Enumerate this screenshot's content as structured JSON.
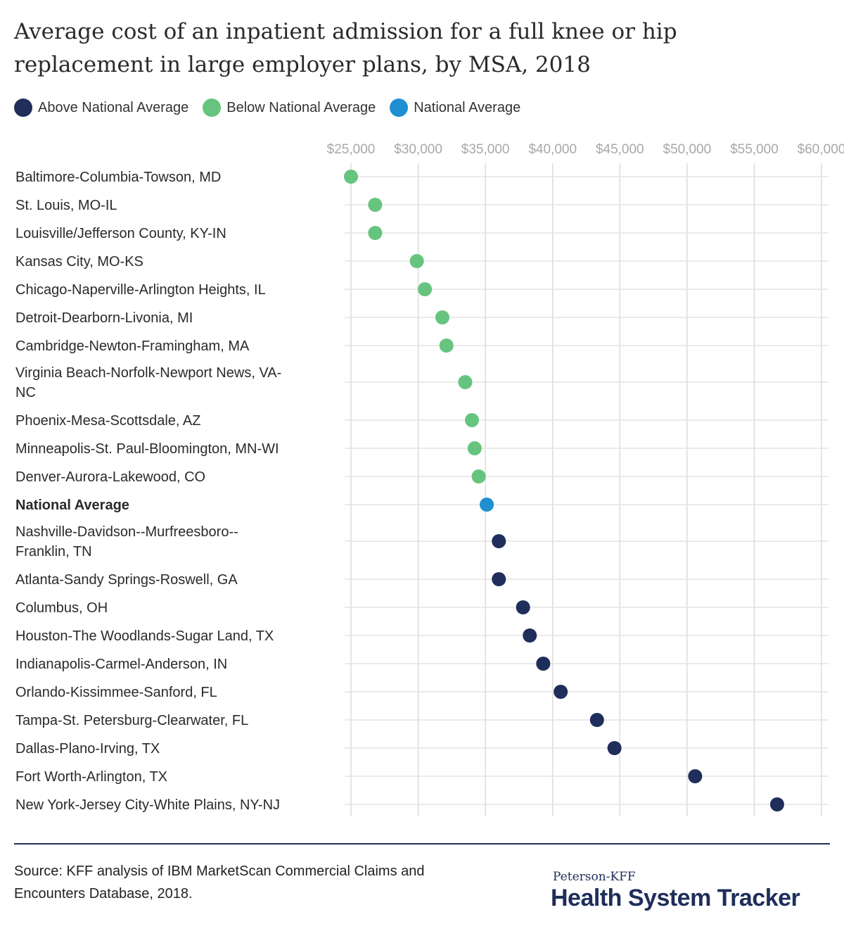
{
  "title": "Average cost of an inpatient admission for a full knee or hip replacement in large employer plans, by MSA, 2018",
  "legend": [
    {
      "label": "Above National Average",
      "color": "#1f2e5a"
    },
    {
      "label": "Below National Average",
      "color": "#66c47e"
    },
    {
      "label": "National Average",
      "color": "#1f8fd1"
    }
  ],
  "chart_data": {
    "type": "scatter",
    "title": "Average cost of an inpatient admission for a full knee or hip replacement in large employer plans, by MSA, 2018",
    "xlim": [
      25000,
      60000
    ],
    "x_ticks": [
      {
        "value": 25000,
        "label": "$25,000"
      },
      {
        "value": 30000,
        "label": "$30,000"
      },
      {
        "value": 35000,
        "label": "$35,000"
      },
      {
        "value": 40000,
        "label": "$40,000"
      },
      {
        "value": 45000,
        "label": "$45,000"
      },
      {
        "value": 50000,
        "label": "$50,000"
      },
      {
        "value": 55000,
        "label": "$55,000"
      },
      {
        "value": 60000,
        "label": "$60,000"
      }
    ],
    "grid": true,
    "legend_position": "top-left",
    "categories": [
      "Baltimore-Columbia-Towson, MD",
      "St. Louis, MO-IL",
      "Louisville/Jefferson County, KY-IN",
      "Kansas City, MO-KS",
      "Chicago-Naperville-Arlington Heights, IL",
      "Detroit-Dearborn-Livonia, MI",
      "Cambridge-Newton-Framingham, MA",
      "Virginia Beach-Norfolk-Newport News, VA-NC",
      "Phoenix-Mesa-Scottsdale, AZ",
      "Minneapolis-St. Paul-Bloomington, MN-WI",
      "Denver-Aurora-Lakewood, CO",
      "National Average",
      "Nashville-Davidson--Murfreesboro--Franklin, TN",
      "Atlanta-Sandy Springs-Roswell, GA",
      "Columbus, OH",
      "Houston-The Woodlands-Sugar Land, TX",
      "Indianapolis-Carmel-Anderson, IN",
      "Orlando-Kissimmee-Sanford, FL",
      "Tampa-St. Petersburg-Clearwater, FL",
      "Dallas-Plano-Irving, TX",
      "Fort Worth-Arlington, TX",
      "New York-Jersey City-White Plains, NY-NJ"
    ],
    "values": [
      25000,
      26800,
      26800,
      29900,
      30500,
      31800,
      32100,
      33500,
      34000,
      34200,
      34500,
      35100,
      36000,
      36000,
      37800,
      38300,
      39300,
      40600,
      43300,
      44600,
      50600,
      56700
    ],
    "groups": [
      "below",
      "below",
      "below",
      "below",
      "below",
      "below",
      "below",
      "below",
      "below",
      "below",
      "below",
      "national",
      "above",
      "above",
      "above",
      "above",
      "above",
      "above",
      "above",
      "above",
      "above",
      "above"
    ],
    "group_colors": {
      "above": "#1f2e5a",
      "below": "#66c47e",
      "national": "#1f8fd1"
    },
    "bold_categories": [
      "National Average"
    ]
  },
  "source": "Source: KFF analysis of IBM MarketScan Commercial Claims and Encounters Database, 2018.",
  "brand": {
    "small": "Peterson-KFF",
    "big": "Health System Tracker"
  }
}
